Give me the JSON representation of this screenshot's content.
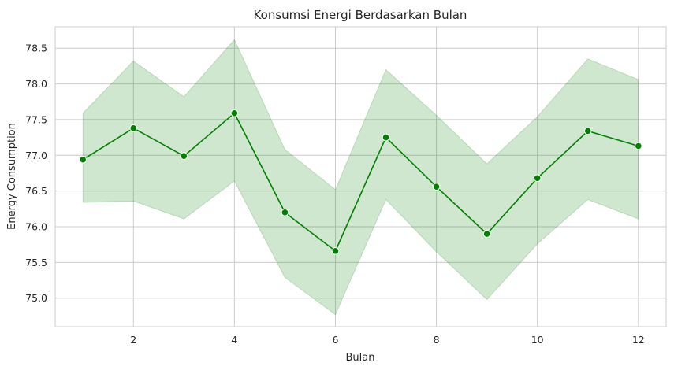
{
  "chart_data": {
    "type": "line",
    "title": "Konsumsi Energi Berdasarkan Bulan",
    "xlabel": "Bulan",
    "ylabel": "Energy Consumption",
    "x": [
      1,
      2,
      3,
      4,
      5,
      6,
      7,
      8,
      9,
      10,
      11,
      12
    ],
    "series": [
      {
        "values": [
          76.94,
          77.38,
          76.99,
          77.59,
          76.2,
          75.66,
          77.25,
          76.56,
          75.9,
          76.68,
          77.34,
          77.13
        ],
        "ci_lower": [
          76.34,
          76.36,
          76.11,
          76.64,
          75.29,
          74.77,
          76.38,
          75.65,
          74.98,
          75.76,
          76.38,
          76.11
        ],
        "ci_upper": [
          77.59,
          78.32,
          77.82,
          78.62,
          77.08,
          76.52,
          78.2,
          77.56,
          76.88,
          77.54,
          78.35,
          78.06
        ],
        "color": "#008000",
        "band_color": "#008000"
      }
    ],
    "xticks": [
      2,
      4,
      6,
      8,
      10,
      12
    ],
    "yticks": [
      75.0,
      75.5,
      76.0,
      76.5,
      77.0,
      77.5,
      78.0,
      78.5
    ],
    "xlim": [
      0.45,
      12.55
    ],
    "ylim": [
      74.6,
      78.8
    ],
    "grid": true
  }
}
